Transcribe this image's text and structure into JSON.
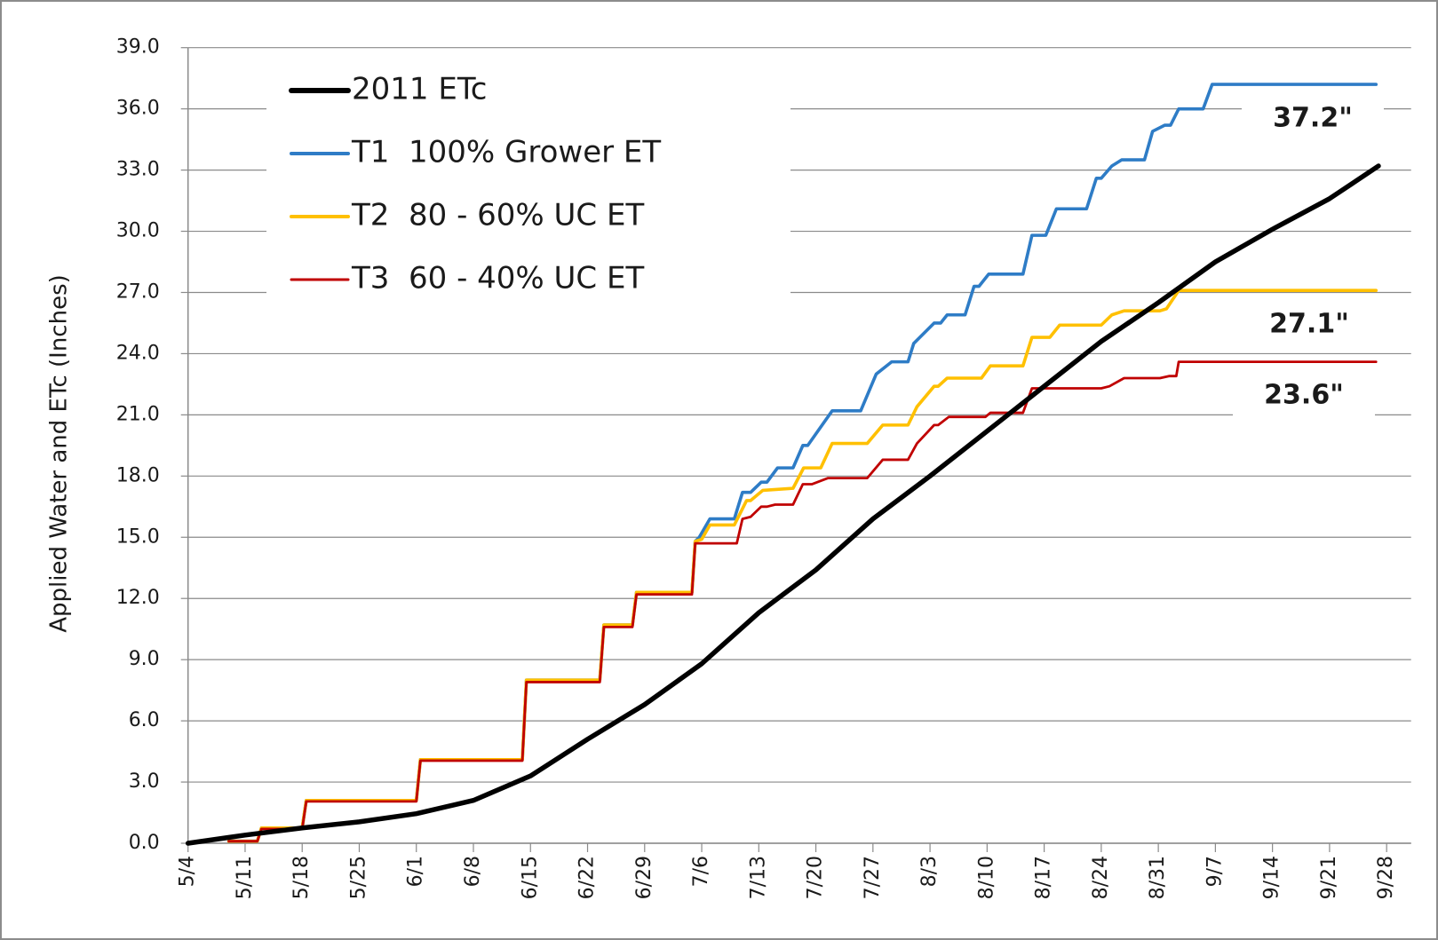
{
  "chart_data": {
    "type": "line",
    "y_label": "Applied Water and ETc  (Inches)",
    "xlim": [
      0,
      150
    ],
    "ylim": [
      0,
      39
    ],
    "grid": true,
    "legend": "upper left",
    "xticks": [
      {
        "value": 0,
        "label": "5/4"
      },
      {
        "value": 7,
        "label": "5/11"
      },
      {
        "value": 14,
        "label": "5/18"
      },
      {
        "value": 21,
        "label": "5/25"
      },
      {
        "value": 28,
        "label": "6/1"
      },
      {
        "value": 35,
        "label": "6/8"
      },
      {
        "value": 42,
        "label": "6/15"
      },
      {
        "value": 49,
        "label": "6/22"
      },
      {
        "value": 56,
        "label": "6/29"
      },
      {
        "value": 63,
        "label": "7/6"
      },
      {
        "value": 70,
        "label": "7/13"
      },
      {
        "value": 77,
        "label": "7/20"
      },
      {
        "value": 84,
        "label": "7/27"
      },
      {
        "value": 91,
        "label": "8/3"
      },
      {
        "value": 98,
        "label": "8/10"
      },
      {
        "value": 105,
        "label": "8/17"
      },
      {
        "value": 112,
        "label": "8/24"
      },
      {
        "value": 119,
        "label": "8/31"
      },
      {
        "value": 126,
        "label": "9/7"
      },
      {
        "value": 133,
        "label": "9/14"
      },
      {
        "value": 140,
        "label": "9/21"
      },
      {
        "value": 147,
        "label": "9/28"
      }
    ],
    "yticks": [
      {
        "value": 0,
        "label": "0.0"
      },
      {
        "value": 3,
        "label": "3.0"
      },
      {
        "value": 6,
        "label": "6.0"
      },
      {
        "value": 9,
        "label": "9.0"
      },
      {
        "value": 12,
        "label": "12.0"
      },
      {
        "value": 15,
        "label": "15.0"
      },
      {
        "value": 18,
        "label": "18.0"
      },
      {
        "value": 21,
        "label": "21.0"
      },
      {
        "value": 24,
        "label": "24.0"
      },
      {
        "value": 27,
        "label": "27.0"
      },
      {
        "value": 30,
        "label": "30.0"
      },
      {
        "value": 33,
        "label": "33.0"
      },
      {
        "value": 36,
        "label": "36.0"
      },
      {
        "value": 39,
        "label": "39.0"
      }
    ],
    "series": [
      {
        "name": "2011 ETc",
        "color": "#000000",
        "x": [
          0,
          7,
          14,
          21,
          28,
          35,
          42,
          49,
          56,
          63,
          70,
          77,
          84,
          91,
          98,
          105,
          112,
          119,
          126,
          133,
          140,
          146
        ],
        "values": [
          0.0,
          0.4,
          0.75,
          1.05,
          1.45,
          2.1,
          3.3,
          5.1,
          6.8,
          8.8,
          11.3,
          13.4,
          15.9,
          18.0,
          20.2,
          22.4,
          24.6,
          26.5,
          28.5,
          30.1,
          31.6,
          33.2
        ]
      },
      {
        "name": "T1  100% Grower ET",
        "color": "#2e7cc6",
        "x": [
          5,
          8.5,
          9,
          14,
          14.5,
          28,
          28.5,
          41,
          41.5,
          50.5,
          51,
          54.5,
          55,
          61.8,
          62.2,
          62.7,
          64,
          67,
          68,
          69,
          70.3,
          71,
          72.3,
          74.2,
          75.4,
          76,
          79,
          82.5,
          84.4,
          86.3,
          88.3,
          89,
          91.5,
          92.3,
          93.1,
          95.3,
          96.4,
          97,
          98.2,
          102.4,
          103.5,
          105.2,
          106.5,
          110.2,
          111.4,
          112,
          113.3,
          114.5,
          117.3,
          118.3,
          119.8,
          120.5,
          121.5,
          124.5,
          125.6,
          145.7
        ],
        "values": [
          0.1,
          0.1,
          0.75,
          0.75,
          2.1,
          2.1,
          4.1,
          4.1,
          8.0,
          8.0,
          10.7,
          10.7,
          12.3,
          12.3,
          14.8,
          15.0,
          15.9,
          15.9,
          17.2,
          17.2,
          17.7,
          17.7,
          18.4,
          18.4,
          19.5,
          19.5,
          21.2,
          21.2,
          23.0,
          23.6,
          23.6,
          24.5,
          25.5,
          25.5,
          25.9,
          25.9,
          27.3,
          27.3,
          27.9,
          27.9,
          29.8,
          29.8,
          31.1,
          31.1,
          32.6,
          32.6,
          33.2,
          33.5,
          33.5,
          34.9,
          35.2,
          35.2,
          36.0,
          36.0,
          37.2,
          37.2
        ]
      },
      {
        "name": "T2  80 - 60% UC ET",
        "color": "#ffc000",
        "x": [
          5,
          8.5,
          9,
          14,
          14.5,
          28,
          28.5,
          41,
          41.5,
          50.5,
          51,
          54.5,
          55,
          61.8,
          62.2,
          63,
          64,
          67,
          68.5,
          69,
          70.5,
          74.2,
          75.5,
          77.6,
          79,
          83.3,
          85.2,
          88.3,
          89.4,
          91.5,
          92,
          93.1,
          97.3,
          98.4,
          102.4,
          103.5,
          105.7,
          106.9,
          112,
          113.3,
          114.8,
          119.2,
          120,
          121.5,
          145.7
        ],
        "values": [
          0.1,
          0.1,
          0.75,
          0.75,
          2.1,
          2.1,
          4.1,
          4.1,
          8.0,
          8.0,
          10.7,
          10.7,
          12.3,
          12.3,
          14.8,
          14.9,
          15.6,
          15.6,
          16.8,
          16.8,
          17.3,
          17.4,
          18.4,
          18.4,
          19.6,
          19.6,
          20.5,
          20.5,
          21.4,
          22.4,
          22.4,
          22.8,
          22.8,
          23.4,
          23.4,
          24.8,
          24.8,
          25.4,
          25.4,
          25.9,
          26.1,
          26.1,
          26.2,
          27.1,
          27.1
        ]
      },
      {
        "name": "T3  60 - 40% UC ET",
        "color": "#c00000",
        "x": [
          5,
          8.5,
          9,
          14,
          14.5,
          28,
          28.5,
          41,
          41.5,
          50.5,
          51,
          54.5,
          55,
          61.8,
          62.2,
          67.3,
          68,
          69,
          70.3,
          71,
          72,
          74.2,
          75.4,
          76.5,
          78.5,
          83.3,
          85.2,
          88.3,
          89.4,
          91.5,
          92,
          93.3,
          97.8,
          98.4,
          102.4,
          103.5,
          112,
          113,
          114.8,
          119.2,
          120.3,
          121.2,
          121.5,
          145.7
        ],
        "values": [
          0.1,
          0.1,
          0.7,
          0.7,
          2.05,
          2.05,
          4.05,
          4.05,
          7.9,
          7.9,
          10.6,
          10.6,
          12.2,
          12.2,
          14.7,
          14.7,
          15.9,
          16.0,
          16.5,
          16.5,
          16.6,
          16.6,
          17.6,
          17.6,
          17.9,
          17.9,
          18.8,
          18.8,
          19.6,
          20.5,
          20.5,
          20.9,
          20.9,
          21.1,
          21.1,
          22.3,
          22.3,
          22.4,
          22.8,
          22.8,
          22.9,
          22.9,
          23.6,
          23.6
        ]
      }
    ],
    "annotations": [
      {
        "text": "37.2\""
      },
      {
        "text": "27.1\""
      },
      {
        "text": "23.6\""
      }
    ]
  }
}
